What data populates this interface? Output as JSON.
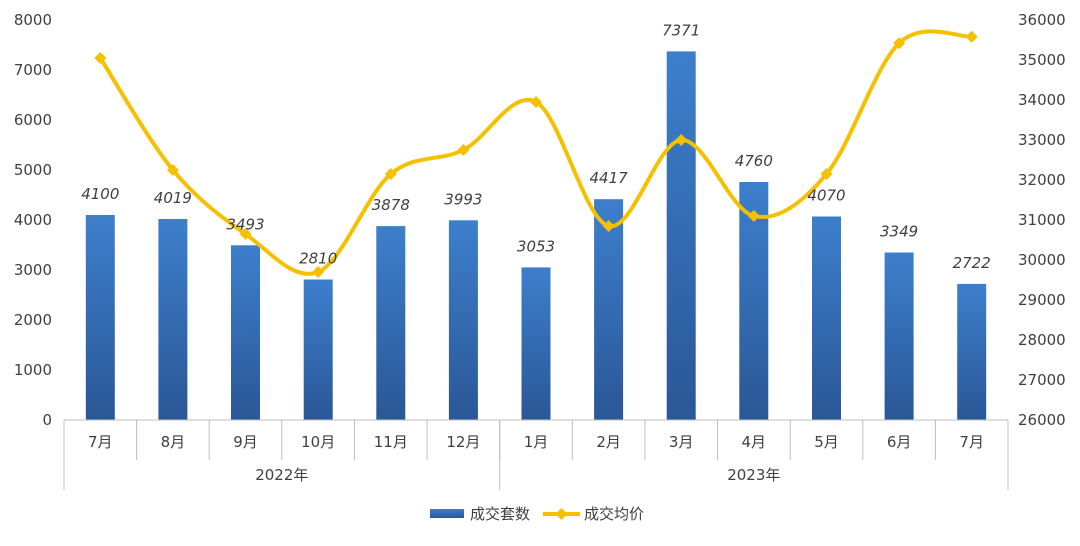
{
  "chart_data": {
    "type": "bar",
    "categories": [
      "7月",
      "8月",
      "9月",
      "10月",
      "11月",
      "12月",
      "1月",
      "2月",
      "3月",
      "4月",
      "5月",
      "6月",
      "7月"
    ],
    "groups": [
      {
        "label": "2022年",
        "count": 6
      },
      {
        "label": "2023年",
        "count": 7
      }
    ],
    "series": [
      {
        "name": "成交套数",
        "type": "bar",
        "axis": "left",
        "color": "#3a78c3",
        "values": [
          4100,
          4019,
          3493,
          2810,
          3878,
          3993,
          3053,
          4417,
          7371,
          4760,
          4070,
          3349,
          2722
        ]
      },
      {
        "name": "成交均价",
        "type": "line",
        "axis": "right",
        "color": "#f5c000",
        "values": [
          35050,
          32250,
          30650,
          29700,
          32150,
          32750,
          33950,
          30850,
          33000,
          31100,
          32150,
          35420,
          35580
        ]
      }
    ],
    "data_labels": [
      "4100",
      "4019",
      "3493",
      "2810",
      "3878",
      "3993",
      "3053",
      "4417",
      "7371",
      "4760",
      "4070",
      "3349",
      "2722"
    ],
    "y_left": {
      "min": 0,
      "max": 8000,
      "ticks": [
        "0",
        "1000",
        "2000",
        "3000",
        "4000",
        "5000",
        "6000",
        "7000",
        "8000"
      ]
    },
    "y_right": {
      "min": 26000,
      "max": 36000,
      "ticks": [
        "26000",
        "27000",
        "28000",
        "29000",
        "30000",
        "31000",
        "32000",
        "33000",
        "34000",
        "35000",
        "36000"
      ]
    },
    "legend_position": "bottom",
    "grid": false
  }
}
